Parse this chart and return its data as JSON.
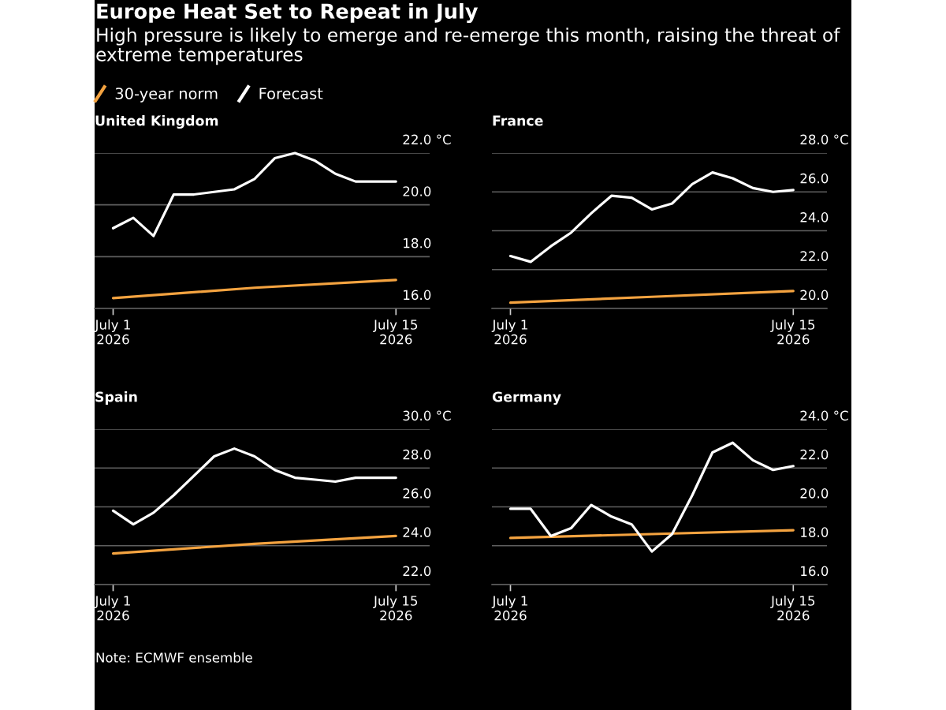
{
  "chart_data": [
    {
      "type": "other",
      "title": "Europe Heat Set to Repeat in July",
      "subtitle": "High pressure is likely to emerge and re-emerge this month, raising the threat of\nextreme temperatures"
    },
    {
      "type": "line",
      "title": "United Kingdom",
      "x": [
        "2026-07-01",
        "2026-07-02",
        "2026-07-03",
        "2026-07-04",
        "2026-07-05",
        "2026-07-06",
        "2026-07-07",
        "2026-07-08",
        "2026-07-09",
        "2026-07-10",
        "2026-07-11",
        "2026-07-12",
        "2026-07-13",
        "2026-07-14",
        "2026-07-15"
      ],
      "series": [
        {
          "name": "30-year norm",
          "color": "#f4a340",
          "x": [
            "2026-07-01",
            "2026-07-08",
            "2026-07-15"
          ],
          "values": [
            16.4,
            16.8,
            17.1
          ]
        },
        {
          "name": "Forecast",
          "color": "#ffffff",
          "values": [
            19.1,
            19.5,
            18.8,
            20.4,
            20.4,
            20.5,
            20.6,
            21.0,
            21.8,
            22.0,
            21.7,
            21.2,
            20.9,
            20.9,
            20.9
          ]
        }
      ],
      "xlim": [
        "2026-06-30T02:00",
        "2026-07-16T16:00"
      ],
      "xticks": [
        {
          "value": "2026-07-01",
          "label": "July 1\n2026"
        },
        {
          "value": "2026-07-15",
          "label": "July 15\n2026"
        }
      ],
      "ylim": [
        16,
        22
      ],
      "yticks": [
        {
          "value": 16,
          "label": "16.0"
        },
        {
          "value": 18,
          "label": "18.0"
        },
        {
          "value": 20,
          "label": "20.0"
        },
        {
          "value": 22,
          "label": "22.0 °C"
        }
      ],
      "grid": "y",
      "legend": "top left"
    },
    {
      "type": "line",
      "title": "France",
      "x": [
        "2026-07-01",
        "2026-07-02",
        "2026-07-03",
        "2026-07-04",
        "2026-07-05",
        "2026-07-06",
        "2026-07-07",
        "2026-07-08",
        "2026-07-09",
        "2026-07-10",
        "2026-07-11",
        "2026-07-12",
        "2026-07-13",
        "2026-07-14",
        "2026-07-15"
      ],
      "series": [
        {
          "color": "#f4a340",
          "x": [
            "2026-07-01",
            "2026-07-08",
            "2026-07-15"
          ],
          "values": [
            20.3,
            20.6,
            20.9
          ]
        },
        {
          "color": "#ffffff",
          "values": [
            22.7,
            22.4,
            23.2,
            23.9,
            24.9,
            25.8,
            25.7,
            25.1,
            25.4,
            26.4,
            27.0,
            26.7,
            26.2,
            26.0,
            26.1
          ]
        }
      ],
      "xlim": [
        "2026-06-30T02:00",
        "2026-07-16T16:00"
      ],
      "xticks": [
        {
          "value": "2026-07-01",
          "label": "July 1\n2026"
        },
        {
          "value": "2026-07-15",
          "label": "July 15\n2026"
        }
      ],
      "ylim": [
        20,
        28
      ],
      "yticks": [
        {
          "value": 20,
          "label": "20.0"
        },
        {
          "value": 22,
          "label": "22.0"
        },
        {
          "value": 24,
          "label": "24.0"
        },
        {
          "value": 26,
          "label": "26.0"
        },
        {
          "value": 28,
          "label": "28.0 °C"
        }
      ],
      "grid": "y"
    },
    {
      "type": "line",
      "title": "Spain",
      "x": [
        "2026-07-01",
        "2026-07-02",
        "2026-07-03",
        "2026-07-04",
        "2026-07-05",
        "2026-07-06",
        "2026-07-07",
        "2026-07-08",
        "2026-07-09",
        "2026-07-10",
        "2026-07-11",
        "2026-07-12",
        "2026-07-13",
        "2026-07-14",
        "2026-07-15"
      ],
      "series": [
        {
          "color": "#f4a340",
          "x": [
            "2026-07-01",
            "2026-07-08",
            "2026-07-15"
          ],
          "values": [
            23.6,
            24.1,
            24.5
          ]
        },
        {
          "color": "#ffffff",
          "values": [
            25.8,
            25.1,
            25.7,
            26.6,
            27.6,
            28.6,
            29.0,
            28.6,
            27.9,
            27.5,
            27.4,
            27.3,
            27.5,
            27.5,
            27.5
          ]
        }
      ],
      "xlim": [
        "2026-06-30T02:00",
        "2026-07-16T16:00"
      ],
      "xticks": [
        {
          "value": "2026-07-01",
          "label": "July 1\n2026"
        },
        {
          "value": "2026-07-15",
          "label": "July 15\n2026"
        }
      ],
      "ylim": [
        22,
        30
      ],
      "yticks": [
        {
          "value": 22,
          "label": "22.0"
        },
        {
          "value": 24,
          "label": "24.0"
        },
        {
          "value": 26,
          "label": "26.0"
        },
        {
          "value": 28,
          "label": "28.0"
        },
        {
          "value": 30,
          "label": "30.0 °C"
        }
      ],
      "grid": "y"
    },
    {
      "type": "line",
      "title": "Germany",
      "x": [
        "2026-07-01",
        "2026-07-02",
        "2026-07-03",
        "2026-07-04",
        "2026-07-05",
        "2026-07-06",
        "2026-07-07",
        "2026-07-08",
        "2026-07-09",
        "2026-07-10",
        "2026-07-11",
        "2026-07-12",
        "2026-07-13",
        "2026-07-14",
        "2026-07-15"
      ],
      "series": [
        {
          "color": "#f4a340",
          "x": [
            "2026-07-01",
            "2026-07-08",
            "2026-07-15"
          ],
          "values": [
            18.4,
            18.6,
            18.8
          ]
        },
        {
          "color": "#ffffff",
          "values": [
            19.9,
            19.9,
            18.5,
            18.9,
            20.1,
            19.5,
            19.1,
            17.7,
            18.6,
            20.6,
            22.8,
            23.3,
            22.4,
            21.9,
            22.1
          ]
        }
      ],
      "xlim": [
        "2026-06-30T02:00",
        "2026-07-16T16:00"
      ],
      "xticks": [
        {
          "value": "2026-07-01",
          "label": "July 1\n2026"
        },
        {
          "value": "2026-07-15",
          "label": "July 15\n2026"
        }
      ],
      "ylim": [
        16,
        24
      ],
      "yticks": [
        {
          "value": 16,
          "label": "16.0"
        },
        {
          "value": 18,
          "label": "18.0"
        },
        {
          "value": 20,
          "label": "20.0"
        },
        {
          "value": 22,
          "label": "22.0"
        },
        {
          "value": 24,
          "label": "24.0 °C"
        }
      ],
      "grid": "y"
    },
    {
      "type": "other",
      "annotations": [
        "Note: ECMWF ensemble"
      ]
    }
  ]
}
